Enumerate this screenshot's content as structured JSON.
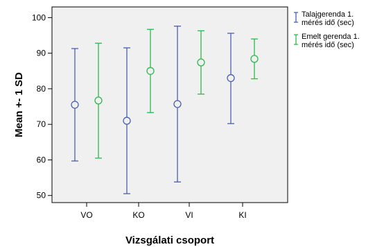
{
  "chart_data": {
    "type": "scatter",
    "subtype": "error-bar",
    "xlabel": "Vizsgálati csoport",
    "ylabel": "Mean +- 1 SD",
    "categories": [
      "VO",
      "KO",
      "VI",
      "KI"
    ],
    "ylim": [
      48,
      103
    ],
    "yticks": [
      50,
      60,
      70,
      80,
      90,
      100
    ],
    "grid": false,
    "legend_position": "top-right",
    "background_color": "#f0f0f0",
    "series": [
      {
        "name": "Talajgerenda 1. mérés idő (sec)",
        "legend_lines": [
          "Talajgerenda 1.",
          "mérés idő (sec)"
        ],
        "color": "#4a5fb4",
        "mean": [
          75.5,
          71.0,
          75.7,
          83.0
        ],
        "lower": [
          59.7,
          50.5,
          53.8,
          70.2
        ],
        "upper": [
          91.3,
          91.5,
          97.6,
          95.6
        ]
      },
      {
        "name": "Emelt gerenda 1. mérés idő (sec)",
        "legend_lines": [
          "Emelt gerenda 1.",
          "mérés idő (sec)"
        ],
        "color": "#2fb84f",
        "mean": [
          76.7,
          85.0,
          87.4,
          88.4
        ],
        "lower": [
          60.5,
          73.3,
          78.5,
          82.8
        ],
        "upper": [
          92.8,
          96.7,
          96.3,
          94.0
        ]
      }
    ]
  }
}
